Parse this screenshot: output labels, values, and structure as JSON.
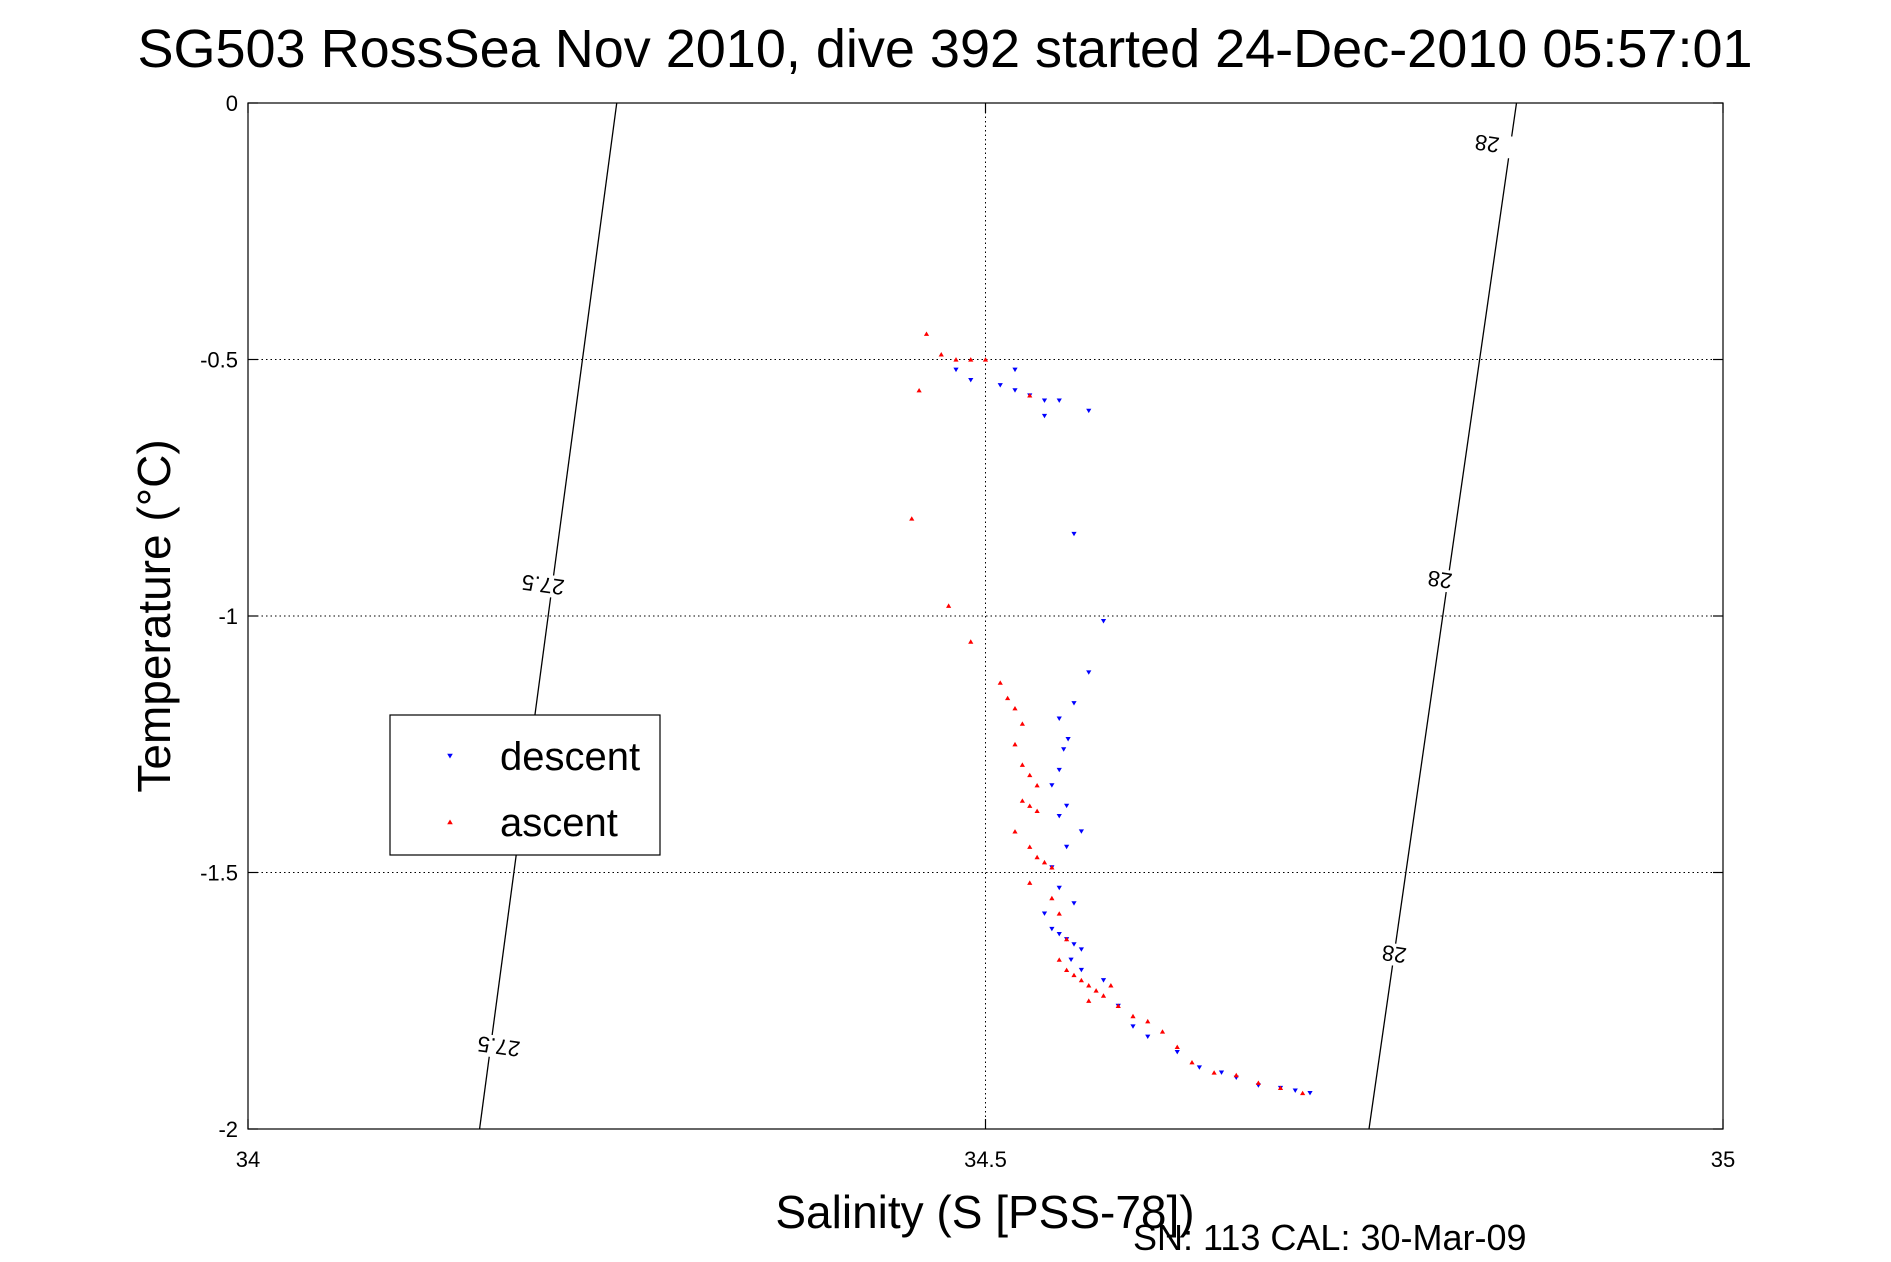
{
  "chart_data": {
    "type": "scatter",
    "title": "SG503 RossSea Nov 2010, dive 392 started 24-Dec-2010 05:57:01",
    "xlabel": "Salinity (S [PSS-78])",
    "ylabel": "Temperature (°C)",
    "xlim": [
      34,
      35
    ],
    "ylim": [
      -2,
      0
    ],
    "xticks": [
      34,
      34.5,
      35
    ],
    "xtick_labels": [
      "34",
      "34.5",
      "35"
    ],
    "yticks": [
      0,
      -0.5,
      -1,
      -1.5,
      -2
    ],
    "ytick_labels": [
      "0",
      "-0.5",
      "-1",
      "-1.5",
      "-2"
    ],
    "grid": true,
    "legend_position": "center-left",
    "footnote": "SN: 113  CAL: 30-Mar-09",
    "contours": [
      {
        "level_label": "27.5",
        "points": [
          [
            34.157,
            -2.0
          ],
          [
            34.25,
            0.0
          ]
        ],
        "label_positions": [
          [
            34.17,
            -1.84
          ],
          [
            34.2,
            -0.94
          ]
        ]
      },
      {
        "level_label": "28",
        "points": [
          [
            34.76,
            -2.0
          ],
          [
            34.86,
            0.0
          ]
        ],
        "label_positions": [
          [
            34.777,
            -1.66
          ],
          [
            34.808,
            -0.93
          ],
          [
            34.84,
            -0.08
          ]
        ]
      }
    ],
    "series": [
      {
        "name": "descent",
        "marker": "triangle-down",
        "color": "#0000ff",
        "points": [
          [
            34.48,
            -0.52
          ],
          [
            34.49,
            -0.54
          ],
          [
            34.51,
            -0.55
          ],
          [
            34.52,
            -0.56
          ],
          [
            34.52,
            -0.52
          ],
          [
            34.53,
            -0.57
          ],
          [
            34.54,
            -0.58
          ],
          [
            34.54,
            -0.61
          ],
          [
            34.55,
            -0.58
          ],
          [
            34.57,
            -0.6
          ],
          [
            34.56,
            -0.84
          ],
          [
            34.58,
            -1.01
          ],
          [
            34.57,
            -1.11
          ],
          [
            34.56,
            -1.17
          ],
          [
            34.55,
            -1.2
          ],
          [
            34.556,
            -1.24
          ],
          [
            34.553,
            -1.26
          ],
          [
            34.55,
            -1.3
          ],
          [
            34.545,
            -1.33
          ],
          [
            34.555,
            -1.37
          ],
          [
            34.55,
            -1.39
          ],
          [
            34.565,
            -1.42
          ],
          [
            34.555,
            -1.45
          ],
          [
            34.545,
            -1.49
          ],
          [
            34.55,
            -1.53
          ],
          [
            34.56,
            -1.56
          ],
          [
            34.54,
            -1.58
          ],
          [
            34.545,
            -1.61
          ],
          [
            34.55,
            -1.62
          ],
          [
            34.555,
            -1.63
          ],
          [
            34.56,
            -1.64
          ],
          [
            34.565,
            -1.65
          ],
          [
            34.558,
            -1.67
          ],
          [
            34.565,
            -1.69
          ],
          [
            34.58,
            -1.71
          ],
          [
            34.59,
            -1.76
          ],
          [
            34.6,
            -1.8
          ],
          [
            34.61,
            -1.82
          ],
          [
            34.63,
            -1.85
          ],
          [
            34.645,
            -1.88
          ],
          [
            34.66,
            -1.89
          ],
          [
            34.67,
            -1.9
          ],
          [
            34.685,
            -1.915
          ],
          [
            34.7,
            -1.92
          ],
          [
            34.71,
            -1.925
          ],
          [
            34.72,
            -1.93
          ]
        ]
      },
      {
        "name": "ascent",
        "marker": "triangle-up",
        "color": "#ff0000",
        "points": [
          [
            34.46,
            -0.45
          ],
          [
            34.47,
            -0.49
          ],
          [
            34.48,
            -0.5
          ],
          [
            34.49,
            -0.5
          ],
          [
            34.5,
            -0.5
          ],
          [
            34.455,
            -0.56
          ],
          [
            34.53,
            -0.57
          ],
          [
            34.45,
            -0.81
          ],
          [
            34.475,
            -0.98
          ],
          [
            34.49,
            -1.05
          ],
          [
            34.51,
            -1.13
          ],
          [
            34.515,
            -1.16
          ],
          [
            34.52,
            -1.18
          ],
          [
            34.525,
            -1.21
          ],
          [
            34.52,
            -1.25
          ],
          [
            34.525,
            -1.29
          ],
          [
            34.53,
            -1.31
          ],
          [
            34.535,
            -1.33
          ],
          [
            34.525,
            -1.36
          ],
          [
            34.53,
            -1.37
          ],
          [
            34.535,
            -1.38
          ],
          [
            34.52,
            -1.42
          ],
          [
            34.53,
            -1.45
          ],
          [
            34.535,
            -1.47
          ],
          [
            34.54,
            -1.48
          ],
          [
            34.545,
            -1.49
          ],
          [
            34.53,
            -1.52
          ],
          [
            34.545,
            -1.55
          ],
          [
            34.55,
            -1.58
          ],
          [
            34.555,
            -1.63
          ],
          [
            34.55,
            -1.67
          ],
          [
            34.555,
            -1.69
          ],
          [
            34.56,
            -1.7
          ],
          [
            34.565,
            -1.71
          ],
          [
            34.57,
            -1.72
          ],
          [
            34.575,
            -1.73
          ],
          [
            34.58,
            -1.74
          ],
          [
            34.585,
            -1.72
          ],
          [
            34.57,
            -1.75
          ],
          [
            34.59,
            -1.76
          ],
          [
            34.6,
            -1.78
          ],
          [
            34.61,
            -1.79
          ],
          [
            34.62,
            -1.81
          ],
          [
            34.63,
            -1.84
          ],
          [
            34.64,
            -1.87
          ],
          [
            34.655,
            -1.89
          ],
          [
            34.67,
            -1.895
          ],
          [
            34.685,
            -1.91
          ],
          [
            34.7,
            -1.92
          ],
          [
            34.715,
            -1.93
          ]
        ]
      }
    ]
  }
}
